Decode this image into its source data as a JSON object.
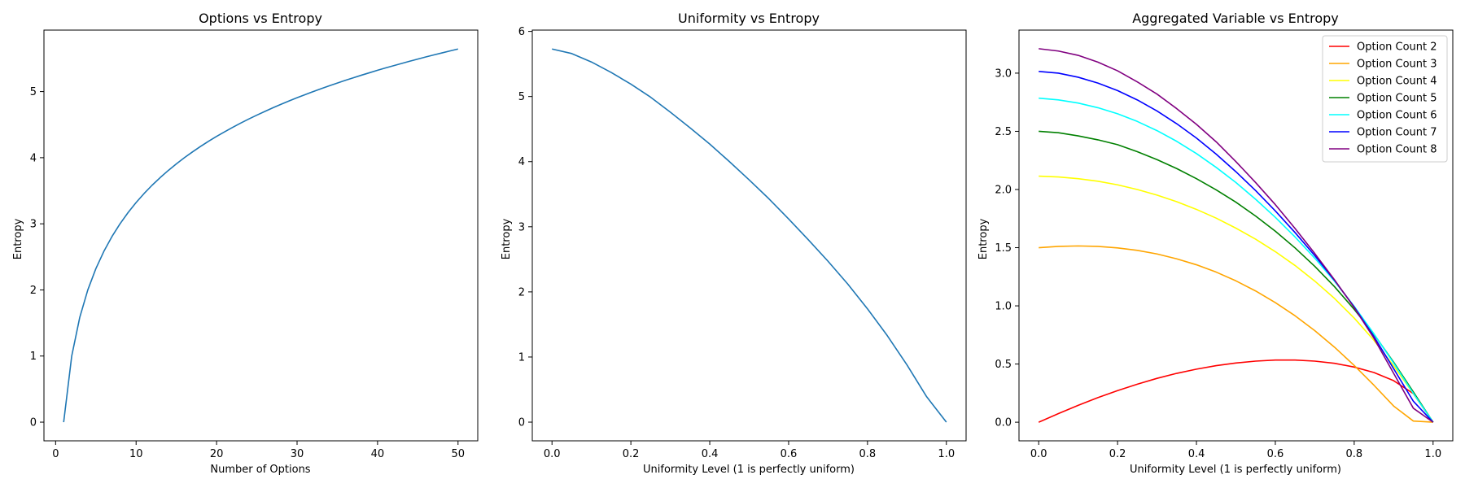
{
  "chart_data": [
    {
      "type": "line",
      "title": "Options vs Entropy",
      "xlabel": "Number of Options",
      "ylabel": "Entropy",
      "xlim": [
        -1.45,
        52.45
      ],
      "ylim": [
        -0.2825,
        5.93
      ],
      "xticks": [
        0,
        10,
        20,
        30,
        40,
        50
      ],
      "yticks": [
        0,
        1,
        2,
        3,
        4,
        5
      ],
      "grid": false,
      "series": [
        {
          "color": "#1f77b4",
          "x": [
            1,
            2,
            3,
            4,
            5,
            6,
            7,
            8,
            9,
            10,
            11,
            12,
            13,
            14,
            15,
            16,
            17,
            18,
            19,
            20,
            21,
            22,
            23,
            24,
            25,
            26,
            27,
            28,
            29,
            30,
            31,
            32,
            33,
            34,
            35,
            36,
            37,
            38,
            39,
            40,
            41,
            42,
            43,
            44,
            45,
            46,
            47,
            48,
            49,
            50
          ],
          "y": [
            0,
            1,
            1.585,
            2,
            2.322,
            2.585,
            2.807,
            3,
            3.17,
            3.322,
            3.459,
            3.585,
            3.7,
            3.807,
            3.907,
            4,
            4.087,
            4.17,
            4.248,
            4.322,
            4.392,
            4.459,
            4.524,
            4.585,
            4.644,
            4.7,
            4.755,
            4.807,
            4.858,
            4.907,
            4.954,
            5,
            5.044,
            5.087,
            5.129,
            5.17,
            5.209,
            5.248,
            5.285,
            5.322,
            5.358,
            5.392,
            5.426,
            5.459,
            5.492,
            5.524,
            5.555,
            5.585,
            5.615,
            5.644
          ]
        }
      ]
    },
    {
      "type": "line",
      "title": "Uniformity vs Entropy",
      "xlabel": "Uniformity Level (1 is perfectly uniform)",
      "ylabel": "Entropy",
      "xlim": [
        -0.05,
        1.05
      ],
      "ylim": [
        -0.287,
        6.02
      ],
      "xticks": [
        0,
        0.2,
        0.4,
        0.6,
        0.8,
        1
      ],
      "yticks": [
        0,
        1,
        2,
        3,
        4,
        5,
        6
      ],
      "grid": false,
      "series": [
        {
          "color": "#1f77b4",
          "x": [
            0,
            0.05,
            0.1,
            0.15,
            0.2,
            0.25,
            0.3,
            0.35,
            0.4,
            0.45,
            0.5,
            0.55,
            0.6,
            0.65,
            0.7,
            0.75,
            0.8,
            0.85,
            0.9,
            0.95,
            1
          ],
          "y": [
            5.73,
            5.66,
            5.53,
            5.37,
            5.19,
            4.99,
            4.76,
            4.52,
            4.27,
            4.0,
            3.72,
            3.43,
            3.12,
            2.8,
            2.47,
            2.12,
            1.74,
            1.33,
            0.88,
            0.39,
            0
          ]
        }
      ]
    },
    {
      "type": "line",
      "title": "Aggregated Variable vs Entropy",
      "xlabel": "Uniformity Level (1 is perfectly uniform)",
      "ylabel": "Entropy",
      "xlim": [
        -0.05,
        1.05
      ],
      "ylim": [
        -0.16,
        3.37
      ],
      "xticks": [
        0,
        0.2,
        0.4,
        0.6,
        0.8,
        1
      ],
      "yticks": [
        0,
        0.5,
        1,
        1.5,
        2,
        2.5,
        3
      ],
      "grid": false,
      "legend": "top-right",
      "x": [
        0,
        0.05,
        0.1,
        0.15,
        0.2,
        0.25,
        0.3,
        0.35,
        0.4,
        0.45,
        0.5,
        0.55,
        0.6,
        0.65,
        0.7,
        0.75,
        0.8,
        0.85,
        0.9,
        0.95,
        1
      ],
      "series": [
        {
          "name": "Option Count 2",
          "color": "#ff0000",
          "values": [
            0,
            0.074,
            0.145,
            0.211,
            0.272,
            0.327,
            0.377,
            0.42,
            0.456,
            0.486,
            0.509,
            0.525,
            0.534,
            0.534,
            0.525,
            0.506,
            0.474,
            0.427,
            0.357,
            0.246,
            0
          ]
        },
        {
          "name": "Option Count 3",
          "color": "#ffa500",
          "values": [
            1.5,
            1.511,
            1.515,
            1.511,
            1.498,
            1.477,
            1.446,
            1.404,
            1.353,
            1.29,
            1.215,
            1.128,
            1.028,
            0.915,
            0.787,
            0.645,
            0.488,
            0.318,
            0.139,
            0.01,
            0
          ]
        },
        {
          "name": "Option Count 4",
          "color": "#ffff00",
          "values": [
            2.115,
            2.108,
            2.093,
            2.071,
            2.04,
            2.0,
            1.952,
            1.895,
            1.829,
            1.754,
            1.668,
            1.573,
            1.466,
            1.347,
            1.213,
            1.064,
            0.895,
            0.704,
            0.484,
            0.247,
            0
          ]
        },
        {
          "name": "Option Count 5",
          "color": "#008000",
          "values": [
            2.5,
            2.488,
            2.461,
            2.427,
            2.385,
            2.325,
            2.257,
            2.18,
            2.093,
            1.997,
            1.891,
            1.772,
            1.642,
            1.498,
            1.34,
            1.165,
            0.97,
            0.756,
            0.516,
            0.26,
            0
          ]
        },
        {
          "name": "Option Count 6",
          "color": "#00ffff",
          "values": [
            2.785,
            2.77,
            2.743,
            2.703,
            2.651,
            2.585,
            2.506,
            2.414,
            2.309,
            2.19,
            2.06,
            1.916,
            1.761,
            1.592,
            1.41,
            1.212,
            0.996,
            0.76,
            0.508,
            0.248,
            0
          ]
        },
        {
          "name": "Option Count 7",
          "color": "#0000ff",
          "values": [
            3.015,
            3.0,
            2.965,
            2.915,
            2.85,
            2.77,
            2.675,
            2.565,
            2.442,
            2.304,
            2.153,
            1.991,
            1.816,
            1.63,
            1.432,
            1.22,
            0.99,
            0.736,
            0.46,
            0.18,
            0
          ]
        },
        {
          "name": "Option Count 8",
          "color": "#800080",
          "values": [
            3.21,
            3.19,
            3.153,
            3.095,
            3.02,
            2.925,
            2.82,
            2.695,
            2.56,
            2.41,
            2.24,
            2.06,
            1.87,
            1.665,
            1.45,
            1.224,
            0.985,
            0.722,
            0.42,
            0.12,
            0
          ]
        }
      ]
    }
  ]
}
